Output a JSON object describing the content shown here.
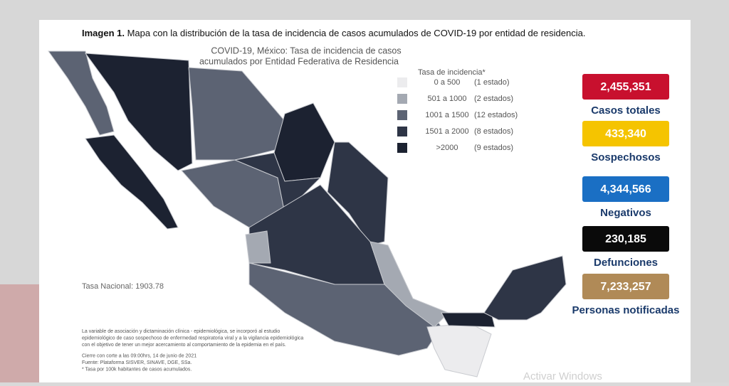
{
  "header": {
    "label": "Imagen 1.",
    "title": "Mapa con la distribución de la tasa de incidencia de casos acumulados de COVID-19 por entidad de residencia."
  },
  "map": {
    "title_lines": [
      "COVID-19, México: Tasa de incidencia de casos",
      "acumulados por Entidad Federativa de Residencia"
    ],
    "national_rate": "Tasa Nacional: 1903.78",
    "legend": {
      "title": "Tasa de incidencia*",
      "items": [
        {
          "range": "0 a 500",
          "count": "(1 estado)",
          "color": "#ececee"
        },
        {
          "range": "501 a 1000",
          "count": "(2 estados)",
          "color": "#a4a9b2"
        },
        {
          "range": "1001 a 1500",
          "count": "(12 estados)",
          "color": "#5c6373"
        },
        {
          "range": "1501 a 2000",
          "count": "(8 estados)",
          "color": "#2e3546"
        },
        {
          "range": ">2000",
          "count": "(9 estados)",
          "color": "#1c2231"
        }
      ]
    }
  },
  "stats": [
    {
      "value": "2,455,351",
      "label": "Casos totales",
      "color": "#c8102e"
    },
    {
      "value": "433,340",
      "label": "Sospechosos",
      "color": "#f5c400"
    },
    {
      "value": "4,344,566",
      "label": "Negativos",
      "color": "#1a6fc4"
    },
    {
      "value": "230,185",
      "label": "Defunciones",
      "color": "#0a0a0a"
    },
    {
      "value": "7,233,257",
      "label": "Personas notificadas",
      "color": "#b08a57"
    }
  ],
  "notes": [
    "La variable de asociación y dictaminación clínica - epidemiológica, se incorporó al estudio",
    "epidemiológico de caso sospechoso de enfermedad respiratoria viral y a la vigilancia epidemiológica",
    "con el objetivo de tener un mejor acercamiento al comportamiento de la epidemia en el país.",
    "Cierre con corte a las 09:00hrs, 14 de junio de 2021",
    "Fuente: Plataforma SISVER, SINAVE, DGE, SSa.",
    "* Tasa por 100k habitantes de casos acumulados."
  ],
  "watermark": "Activar Windows"
}
